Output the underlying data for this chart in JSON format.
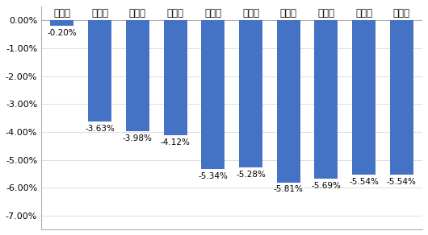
{
  "categories": [
    "第一个",
    "第二个",
    "第三个",
    "第四个",
    "第五个",
    "第六个",
    "第七个",
    "第八个",
    "第九个",
    "第十个"
  ],
  "values": [
    -0.002,
    -0.0363,
    -0.0398,
    -0.0412,
    -0.0534,
    -0.0528,
    -0.0581,
    -0.0569,
    -0.0554,
    -0.0554
  ],
  "labels": [
    "-0.20%",
    "-3.63%",
    "-3.98%",
    "-4.12%",
    "-5.34%",
    "-5.28%",
    "-5.81%",
    "-5.69%",
    "-5.54%",
    "-5.54%"
  ],
  "bar_color": "#4472C4",
  "ylim": [
    -0.075,
    0.005
  ],
  "yticks": [
    0.0,
    -0.01,
    -0.02,
    -0.03,
    -0.04,
    -0.05,
    -0.06,
    -0.07
  ],
  "plot_bg_color": "#ffffff",
  "label_fontsize": 7.5,
  "cat_fontsize": 8.5,
  "ytick_fontsize": 8.0
}
